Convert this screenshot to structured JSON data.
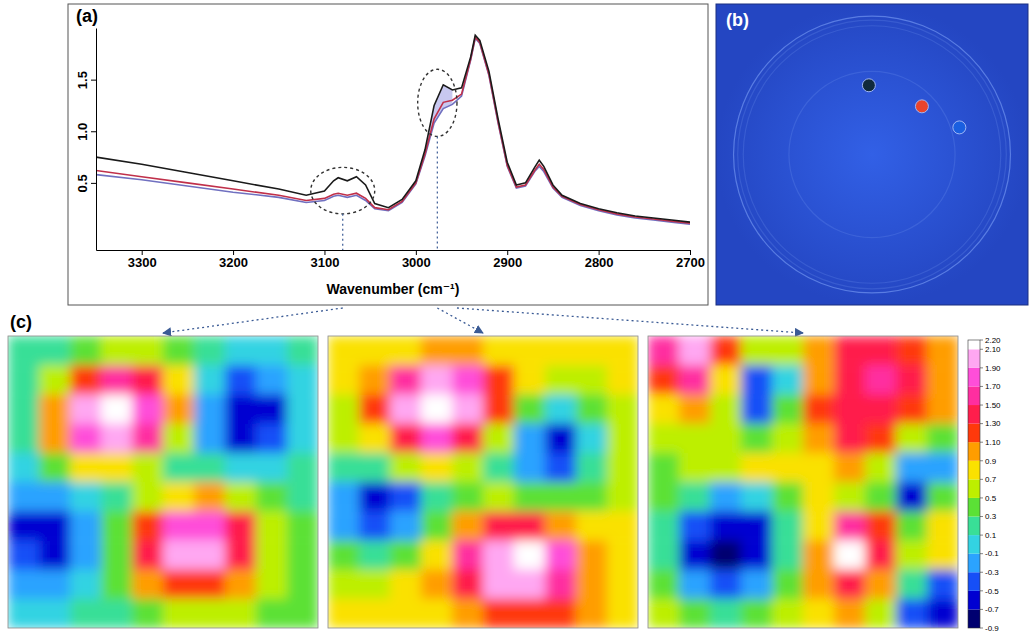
{
  "chart_data": [
    {
      "type": "line",
      "panel": "(a)",
      "x_label": "Wavenumber (cm⁻¹)",
      "x": [
        3350,
        3300,
        3250,
        3200,
        3150,
        3120,
        3100,
        3090,
        3085,
        3075,
        3065,
        3055,
        3045,
        3030,
        3015,
        3000,
        2990,
        2980,
        2970,
        2960,
        2950,
        2940,
        2935,
        2930,
        2920,
        2910,
        2900,
        2890,
        2880,
        2870,
        2865,
        2860,
        2850,
        2840,
        2820,
        2800,
        2780,
        2760,
        2740,
        2720,
        2700
      ],
      "series": [
        {
          "color": "#1a1a1a",
          "values": [
            0.75,
            0.68,
            0.6,
            0.52,
            0.44,
            0.38,
            0.42,
            0.52,
            0.55,
            0.52,
            0.56,
            0.48,
            0.3,
            0.26,
            0.34,
            0.52,
            0.82,
            1.25,
            1.45,
            1.4,
            1.42,
            1.72,
            1.93,
            1.88,
            1.58,
            1.12,
            0.7,
            0.48,
            0.5,
            0.65,
            0.72,
            0.66,
            0.48,
            0.38,
            0.3,
            0.25,
            0.21,
            0.18,
            0.16,
            0.14,
            0.12
          ]
        },
        {
          "color": "#c0304a",
          "values": [
            0.62,
            0.56,
            0.5,
            0.44,
            0.38,
            0.33,
            0.35,
            0.39,
            0.4,
            0.38,
            0.4,
            0.35,
            0.26,
            0.24,
            0.32,
            0.5,
            0.78,
            1.12,
            1.28,
            1.3,
            1.36,
            1.7,
            1.91,
            1.86,
            1.55,
            1.09,
            0.67,
            0.46,
            0.48,
            0.62,
            0.68,
            0.63,
            0.46,
            0.37,
            0.29,
            0.24,
            0.2,
            0.17,
            0.15,
            0.13,
            0.11
          ]
        },
        {
          "color": "#7070c0",
          "values": [
            0.58,
            0.53,
            0.47,
            0.41,
            0.36,
            0.31,
            0.33,
            0.37,
            0.38,
            0.36,
            0.38,
            0.33,
            0.25,
            0.23,
            0.31,
            0.49,
            0.76,
            1.08,
            1.22,
            1.26,
            1.34,
            1.69,
            1.9,
            1.85,
            1.54,
            1.08,
            0.66,
            0.45,
            0.47,
            0.61,
            0.66,
            0.61,
            0.45,
            0.36,
            0.28,
            0.23,
            0.19,
            0.16,
            0.14,
            0.12,
            0.1
          ]
        }
      ],
      "xlim": [
        3350,
        2700
      ],
      "xticks": [
        3300,
        3200,
        3100,
        3000,
        2900,
        2800,
        2700
      ],
      "ylim": [
        -0.15,
        2.0
      ],
      "yticks": [
        0.5,
        {
          "value": 1,
          "label": "1.0"
        },
        1.5
      ],
      "regions": [
        {
          "x": [
            3115,
            3045
          ],
          "y": [
            0.2,
            0.65
          ]
        },
        {
          "x": [
            2998,
            2955
          ],
          "y": [
            0.95,
            1.6
          ],
          "color": "#c8c8f0"
        }
      ]
    },
    {
      "type": "image",
      "panel": "(b)",
      "tick_labels": false,
      "xlim": [
        0,
        1
      ],
      "ylim": [
        0,
        1
      ],
      "x": [
        0.49,
        0.66,
        0.78
      ],
      "values": [
        0.73,
        0.66,
        0.59
      ],
      "colors": [
        "#102a3c",
        "#e8442c",
        "#1a5fe0"
      ]
    },
    {
      "type": "heatmap",
      "panel": "(c)",
      "maps": [
        {
          "values": [
            [
              0.1,
              0.2,
              0.4,
              0.6,
              0.6,
              0.4,
              0.1,
              0.0,
              0.0,
              0.1
            ],
            [
              0.1,
              0.5,
              1.2,
              1.6,
              1.4,
              0.8,
              0.0,
              -0.4,
              -0.3,
              0.0
            ],
            [
              0.2,
              0.9,
              1.9,
              2.1,
              1.8,
              0.9,
              -0.2,
              -0.7,
              -0.6,
              -0.1
            ],
            [
              0.2,
              0.9,
              1.8,
              1.9,
              1.5,
              0.6,
              -0.2,
              -0.6,
              -0.5,
              -0.1
            ],
            [
              0.0,
              0.4,
              0.8,
              0.8,
              0.5,
              0.2,
              0.1,
              -0.1,
              -0.1,
              0.1
            ],
            [
              -0.3,
              -0.3,
              0.0,
              0.2,
              0.5,
              0.8,
              0.9,
              0.6,
              0.3,
              0.2
            ],
            [
              -0.6,
              -0.7,
              -0.3,
              0.3,
              1.2,
              1.7,
              1.8,
              1.3,
              0.5,
              0.3
            ],
            [
              -0.5,
              -0.6,
              -0.2,
              0.4,
              1.4,
              1.9,
              1.9,
              1.4,
              0.6,
              0.4
            ],
            [
              -0.2,
              -0.3,
              0.0,
              0.3,
              0.9,
              1.2,
              1.2,
              0.9,
              0.5,
              0.4
            ],
            [
              0.0,
              0.0,
              0.1,
              0.2,
              0.4,
              0.5,
              0.5,
              0.5,
              0.4,
              0.4
            ]
          ]
        },
        {
          "values": [
            [
              0.7,
              0.7,
              0.8,
              0.9,
              0.9,
              0.8,
              0.7,
              0.7,
              0.7,
              0.7
            ],
            [
              0.7,
              0.9,
              1.5,
              1.9,
              1.8,
              1.2,
              0.7,
              0.5,
              0.6,
              0.7
            ],
            [
              0.6,
              1.1,
              1.9,
              2.2,
              2.0,
              1.2,
              0.4,
              0.0,
              0.3,
              0.6
            ],
            [
              0.5,
              0.8,
              1.4,
              1.7,
              1.4,
              0.6,
              -0.3,
              -0.6,
              0.0,
              0.5
            ],
            [
              0.2,
              0.2,
              0.5,
              0.7,
              0.6,
              0.2,
              -0.3,
              -0.4,
              0.1,
              0.5
            ],
            [
              -0.3,
              -0.6,
              -0.4,
              0.1,
              0.4,
              0.5,
              0.4,
              0.3,
              0.4,
              0.6
            ],
            [
              -0.2,
              -0.5,
              -0.3,
              0.3,
              0.9,
              1.3,
              1.3,
              1.0,
              0.7,
              0.7
            ],
            [
              0.3,
              0.2,
              0.4,
              0.8,
              1.5,
              2.0,
              2.2,
              1.7,
              1.0,
              0.8
            ],
            [
              0.6,
              0.6,
              0.7,
              0.9,
              1.4,
              1.9,
              2.0,
              1.6,
              1.0,
              0.8
            ],
            [
              0.7,
              0.7,
              0.7,
              0.8,
              1.0,
              1.2,
              1.2,
              1.1,
              0.9,
              0.8
            ]
          ]
        },
        {
          "values": [
            [
              1.5,
              2.0,
              1.2,
              0.5,
              0.6,
              0.9,
              1.3,
              1.4,
              1.2,
              0.9
            ],
            [
              1.2,
              1.6,
              0.8,
              -0.4,
              0.0,
              1.0,
              1.4,
              1.5,
              1.4,
              1.0
            ],
            [
              0.8,
              1.0,
              0.5,
              -0.5,
              0.3,
              1.2,
              1.4,
              1.3,
              1.2,
              0.9
            ],
            [
              0.5,
              0.6,
              0.5,
              0.4,
              0.6,
              1.0,
              1.3,
              1.1,
              0.6,
              0.4
            ],
            [
              0.4,
              0.5,
              0.6,
              0.7,
              0.7,
              0.8,
              0.9,
              0.5,
              -0.3,
              -0.2
            ],
            [
              0.3,
              0.1,
              -0.2,
              -0.1,
              0.3,
              0.7,
              0.6,
              0.4,
              -0.6,
              0.3
            ],
            [
              0.2,
              -0.5,
              -0.7,
              -0.6,
              0.2,
              0.8,
              1.5,
              1.2,
              0.3,
              0.7
            ],
            [
              0.1,
              -0.6,
              -0.8,
              -0.7,
              0.2,
              1.0,
              2.1,
              1.3,
              0.5,
              0.8
            ],
            [
              0.3,
              -0.3,
              -0.5,
              -0.3,
              0.3,
              1.0,
              1.4,
              1.0,
              0.1,
              -0.4
            ],
            [
              0.6,
              0.4,
              0.2,
              0.3,
              0.6,
              0.8,
              0.9,
              0.6,
              -0.4,
              -0.7
            ]
          ]
        }
      ],
      "colorbar": {
        "range": [
          -0.9,
          2.2
        ],
        "ticks": [
          -0.9,
          -0.7,
          -0.5,
          -0.3,
          -0.1,
          0.1,
          0.3,
          0.5,
          0.7,
          0.9,
          {
            "value": 1.1,
            "label": "1.10"
          },
          {
            "value": 1.3,
            "label": "1.30"
          },
          {
            "value": 1.5,
            "label": "1.50"
          },
          {
            "value": 1.7,
            "label": "1.70"
          },
          {
            "value": 1.9,
            "label": "1.90"
          },
          {
            "value": 2.1,
            "label": "2.10"
          },
          {
            "value": 2.2,
            "label": "2.20"
          }
        ]
      }
    }
  ]
}
